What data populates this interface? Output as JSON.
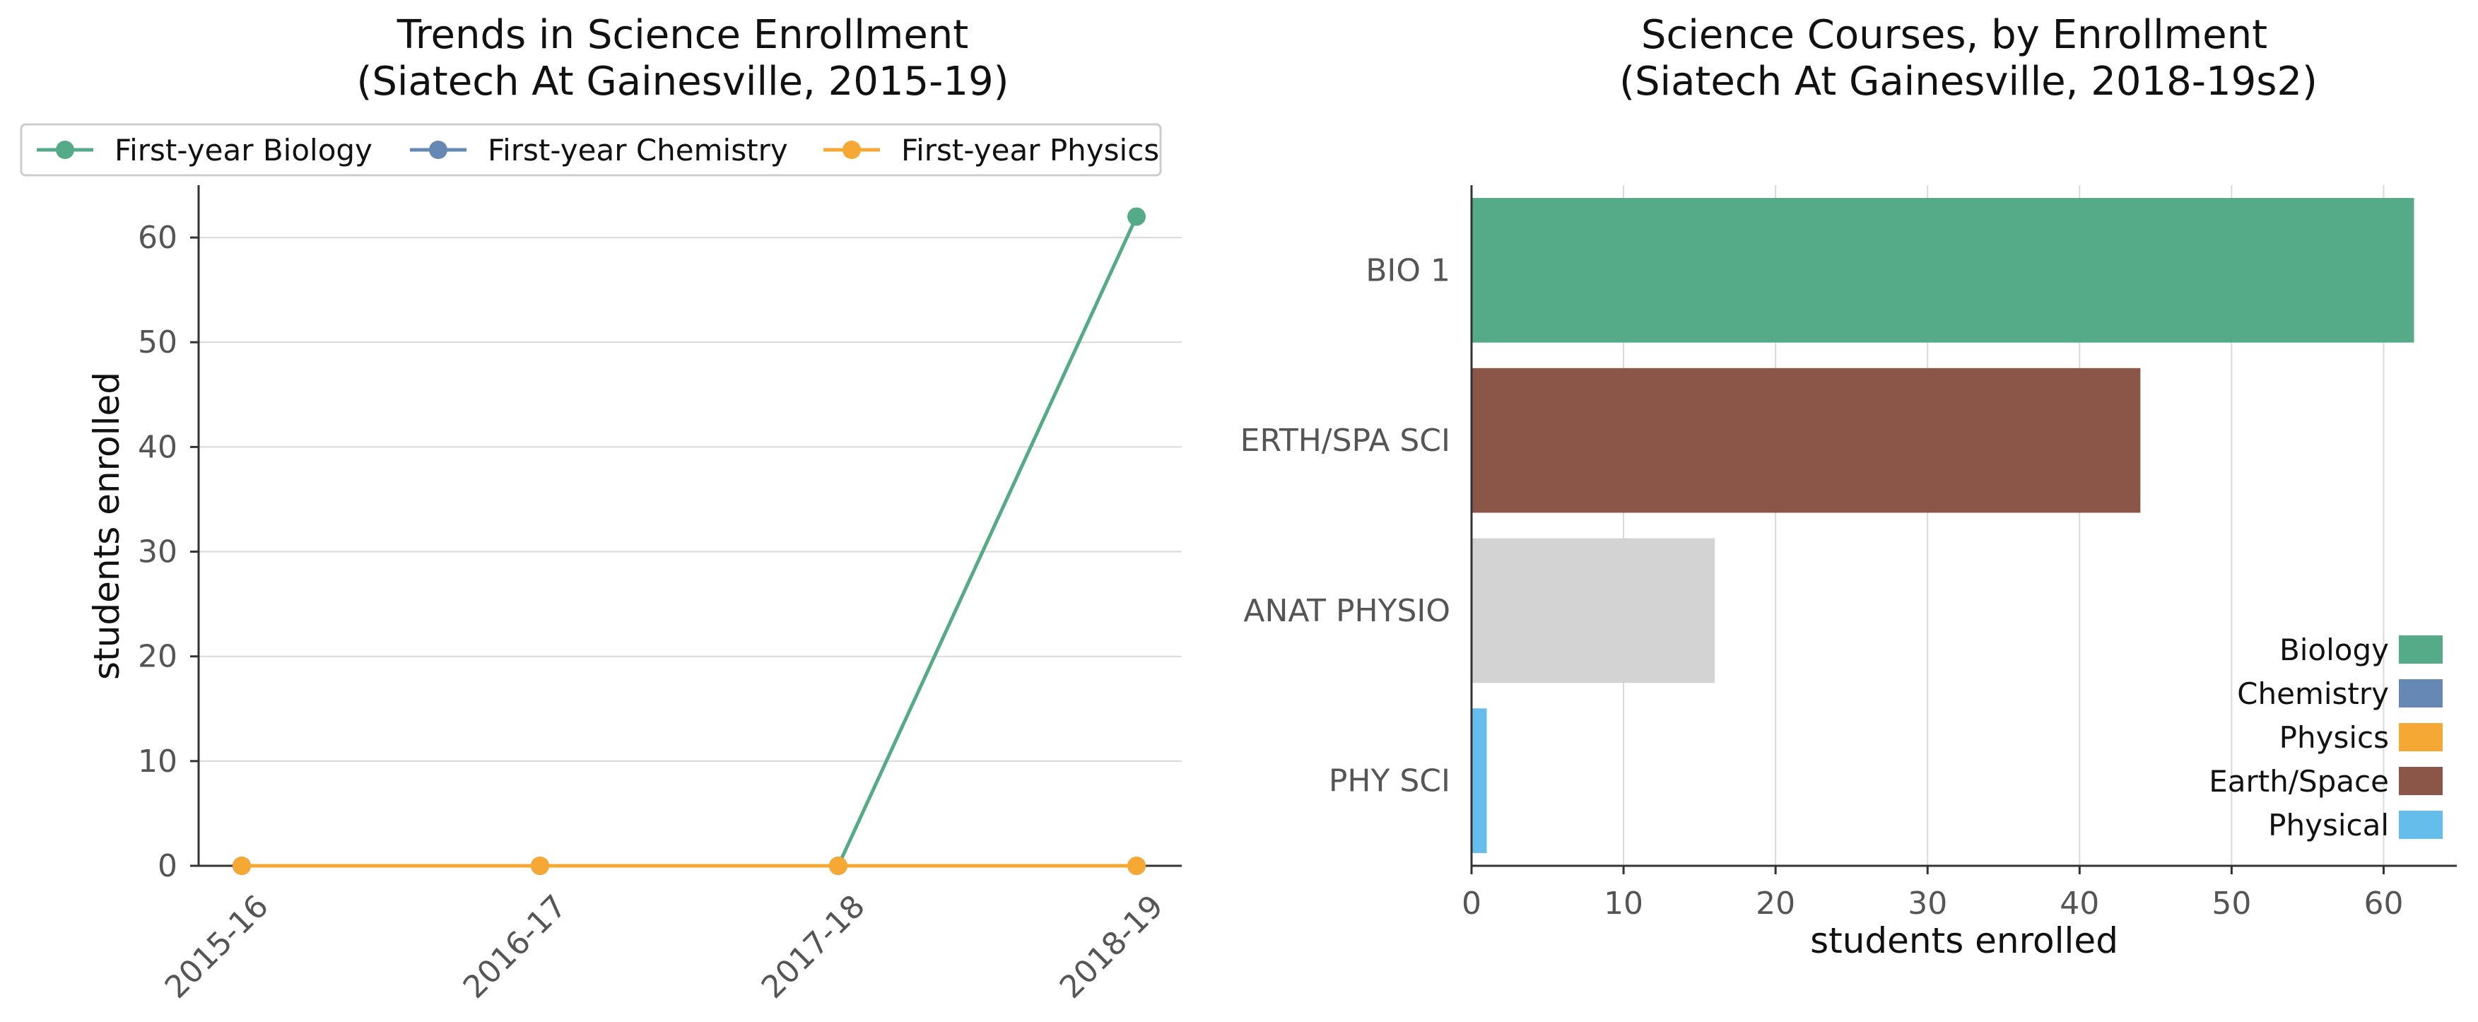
{
  "chart_data": [
    {
      "type": "line",
      "title": "Trends in Science Enrollment\n(Siatech At Gainesville, 2015-19)",
      "title_lines": [
        "Trends in Science Enrollment",
        "(Siatech At Gainesville, 2015-19)"
      ],
      "xlabel": "",
      "ylabel": "students enrolled",
      "categories": [
        "2015-16",
        "2016-17",
        "2017-18",
        "2018-19"
      ],
      "ylim": [
        0,
        65
      ],
      "yticks": [
        0,
        10,
        20,
        30,
        40,
        50,
        60
      ],
      "grid": "horizontal",
      "legend_position": "top",
      "series": [
        {
          "name": "First-year Biology",
          "color": "#55aa88",
          "values": [
            0,
            0,
            0,
            62
          ]
        },
        {
          "name": "First-year Chemistry",
          "color": "#6688b5",
          "values": [
            0,
            0,
            0,
            0
          ]
        },
        {
          "name": "First-year Physics",
          "color": "#f5a833",
          "values": [
            0,
            0,
            0,
            0
          ]
        }
      ]
    },
    {
      "type": "bar",
      "orientation": "horizontal",
      "title": "Science Courses, by Enrollment\n(Siatech At Gainesville, 2018-19s2)",
      "title_lines": [
        "Science Courses, by Enrollment",
        "(Siatech At Gainesville, 2018-19s2)"
      ],
      "xlabel": "students enrolled",
      "ylabel": "",
      "categories": [
        "BIO 1",
        "ERTH/SPA SCI",
        "ANAT PHYSIO",
        "PHY SCI"
      ],
      "values": [
        62,
        44,
        16,
        1
      ],
      "bar_colors": [
        "#55aa88",
        "#8b5547",
        "#d3d3d3",
        "#65bdeb"
      ],
      "xlim": [
        0,
        65
      ],
      "xticks": [
        0,
        10,
        20,
        30,
        40,
        50,
        60
      ],
      "grid": "vertical",
      "legend_position": "bottom-right",
      "legend": [
        {
          "name": "Biology",
          "color": "#55aa88"
        },
        {
          "name": "Chemistry",
          "color": "#6688b5"
        },
        {
          "name": "Physics",
          "color": "#f5a833"
        },
        {
          "name": "Earth/Space",
          "color": "#8b5547"
        },
        {
          "name": "Physical",
          "color": "#65bdeb"
        }
      ]
    }
  ]
}
